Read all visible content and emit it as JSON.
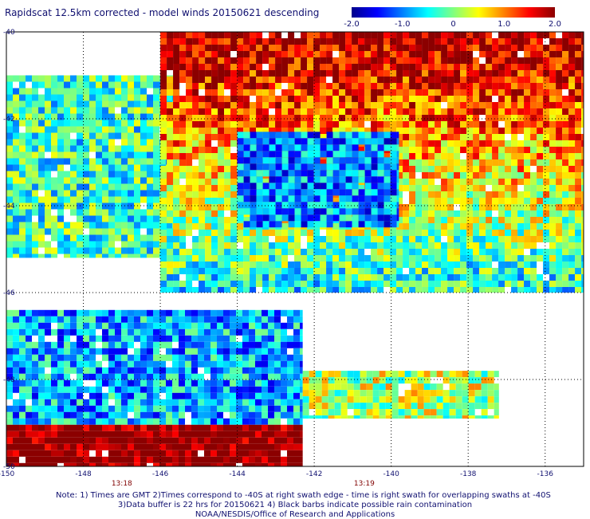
{
  "title": "Rapidscat 12.5km corrected - model winds 20150621 descending",
  "colorbar": {
    "range": [
      -2.0,
      2.0
    ],
    "tick_labels": [
      "-2.0",
      "-1.0",
      "0",
      "1.0",
      "2.0"
    ],
    "tick_values": [
      -2.0,
      -1.0,
      0,
      1.0,
      2.0
    ],
    "colors": [
      "#00008b",
      "#0000ff",
      "#0080ff",
      "#00ffff",
      "#80ff80",
      "#ffff00",
      "#ff8000",
      "#ff0000",
      "#8b0000"
    ]
  },
  "map": {
    "lon_range": [
      -150,
      -135
    ],
    "lat_range": [
      -50,
      -40
    ],
    "lon_tick_labels": [
      "-150",
      "-148",
      "-146",
      "-144",
      "-142",
      "-140",
      "-138",
      "-136"
    ],
    "lon_tick_values": [
      -150,
      -148,
      -146,
      -144,
      -142,
      -140,
      -138,
      -136
    ],
    "lat_tick_labels": [
      "-40",
      "-42",
      "-44",
      "-46",
      "-48",
      "-50"
    ],
    "lat_tick_values": [
      -40,
      -42,
      -44,
      -46,
      -48,
      -50
    ],
    "time_labels": [
      {
        "text": "13:18",
        "lon": -147.0
      },
      {
        "text": "13:19",
        "lon": -140.7
      }
    ],
    "swaths": [
      {
        "name": "swath-upper-left-narrow",
        "lat_top": -41.0,
        "lat_bot": -45.2,
        "lon_left": -150.0,
        "lon_right": -145.5,
        "bias": -0.3
      },
      {
        "name": "swath-upper-right-wide",
        "lat_top": -40.0,
        "lat_bot": -46.0,
        "lon_left": -146.0,
        "lon_right": -135.0,
        "bias": 1.3
      },
      {
        "name": "swath-middle-strip",
        "lat_top": -42.3,
        "lat_bot": -44.5,
        "lon_left": -144.0,
        "lon_right": -139.8,
        "bias": -1.0
      },
      {
        "name": "swath-lower-left",
        "lat_top": -46.4,
        "lat_bot": -50.0,
        "lon_left": -150.0,
        "lon_right": -142.3,
        "bias": -0.8
      },
      {
        "name": "swath-lower-right",
        "lat_top": -47.8,
        "lat_bot": -48.9,
        "lon_left": -142.3,
        "lon_right": -137.2,
        "bias": 0.2
      }
    ]
  },
  "footer": {
    "line1": "Note: 1) Times are GMT 2)Times correspond to -40S at right swath edge - time is right swath for overlapping swaths at -40S",
    "line2": "3)Data buffer is 22 hrs for 20150621 4) Black barbs indicate possible rain contamination",
    "line3": "NOAA/NESDIS/Office of Research and Applications"
  }
}
